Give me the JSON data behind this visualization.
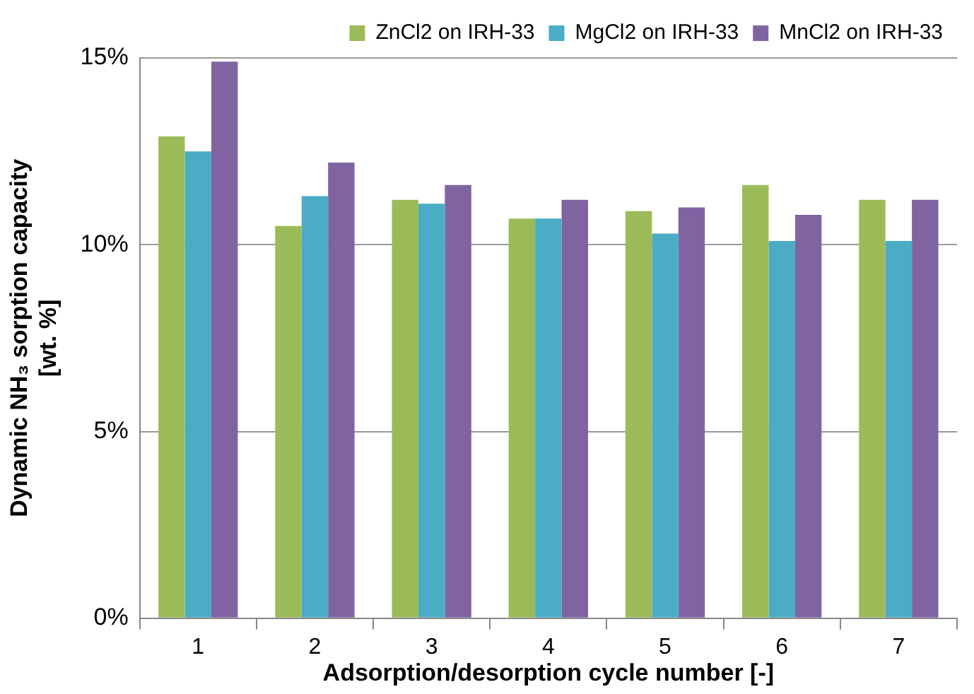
{
  "chart_data": {
    "type": "bar",
    "xlabel": "Adsorption/desorption cycle number [-]",
    "ylabel": "Dynamic NH₃ sorption capacity\n[wt. %]",
    "categories": [
      "1",
      "2",
      "3",
      "4",
      "5",
      "6",
      "7"
    ],
    "series": [
      {
        "name": "ZnCl2 on IRH-33",
        "color": "#9bbb59",
        "values": [
          12.9,
          10.5,
          11.2,
          10.7,
          10.9,
          11.6,
          11.2
        ]
      },
      {
        "name": "MgCl2 on IRH-33",
        "color": "#4bacc6",
        "values": [
          12.5,
          11.3,
          11.1,
          10.7,
          10.3,
          10.1,
          10.1
        ]
      },
      {
        "name": "MnCl2 on IRH-33",
        "color": "#8064a2",
        "values": [
          14.9,
          12.2,
          11.6,
          11.2,
          11.0,
          10.8,
          11.2
        ]
      }
    ],
    "ylim": [
      0,
      15
    ],
    "yticks": [
      {
        "value": 0,
        "label": "0%"
      },
      {
        "value": 5,
        "label": "5%"
      },
      {
        "value": 10,
        "label": "10%"
      },
      {
        "value": 15,
        "label": "15%"
      }
    ],
    "grid": "y",
    "legend": "top right"
  }
}
